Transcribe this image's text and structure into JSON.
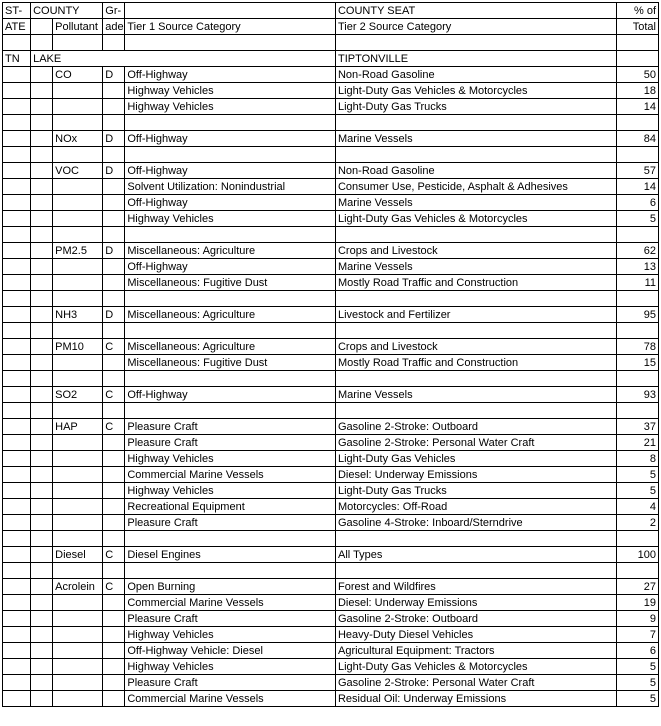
{
  "header": {
    "r1": {
      "state": "ST-",
      "county": "COUNTY",
      "grade": "Gr-",
      "tier1": "",
      "tier2": "COUNTY SEAT",
      "pct": "% of"
    },
    "r2": {
      "state": "ATE",
      "county": "",
      "pollutant": "Pollutant",
      "grade": "ade",
      "tier1": "Tier 1 Source Category",
      "tier2": "Tier 2 Source Category",
      "pct": "Total"
    }
  },
  "county_row": {
    "state": "TN",
    "county": "LAKE",
    "seat": "TIPTONVILLE"
  },
  "rows": [
    {
      "pollutant": "CO",
      "grade": "D",
      "tier1": "Off-Highway",
      "tier2": "Non-Road Gasoline",
      "pct": "50"
    },
    {
      "pollutant": "",
      "grade": "",
      "tier1": "Highway Vehicles",
      "tier2": "Light-Duty Gas Vehicles & Motorcycles",
      "pct": "18"
    },
    {
      "pollutant": "",
      "grade": "",
      "tier1": "Highway Vehicles",
      "tier2": "Light-Duty Gas Trucks",
      "pct": "14"
    },
    {
      "blank": true
    },
    {
      "pollutant": "NOx",
      "grade": "D",
      "tier1": "Off-Highway",
      "tier2": "Marine Vessels",
      "pct": "84"
    },
    {
      "blank": true
    },
    {
      "pollutant": "VOC",
      "grade": "D",
      "tier1": "Off-Highway",
      "tier2": "Non-Road Gasoline",
      "pct": "57"
    },
    {
      "pollutant": "",
      "grade": "",
      "tier1": "Solvent Utilization: Nonindustrial",
      "tier2": "Consumer Use, Pesticide, Asphalt & Adhesives",
      "pct": "14"
    },
    {
      "pollutant": "",
      "grade": "",
      "tier1": "Off-Highway",
      "tier2": "Marine Vessels",
      "pct": "6"
    },
    {
      "pollutant": "",
      "grade": "",
      "tier1": "Highway Vehicles",
      "tier2": "Light-Duty Gas Vehicles & Motorcycles",
      "pct": "5"
    },
    {
      "blank": true
    },
    {
      "pollutant": "PM2.5",
      "grade": "D",
      "tier1": "Miscellaneous: Agriculture",
      "tier2": "Crops and Livestock",
      "pct": "62"
    },
    {
      "pollutant": "",
      "grade": "",
      "tier1": "Off-Highway",
      "tier2": "Marine Vessels",
      "pct": "13"
    },
    {
      "pollutant": "",
      "grade": "",
      "tier1": "Miscellaneous: Fugitive Dust",
      "tier2": "Mostly Road Traffic and Construction",
      "pct": "11"
    },
    {
      "blank": true
    },
    {
      "pollutant": "NH3",
      "grade": "D",
      "tier1": "Miscellaneous: Agriculture",
      "tier2": "Livestock and Fertilizer",
      "pct": "95"
    },
    {
      "blank": true
    },
    {
      "pollutant": "PM10",
      "grade": "C",
      "tier1": "Miscellaneous: Agriculture",
      "tier2": "Crops and Livestock",
      "pct": "78"
    },
    {
      "pollutant": "",
      "grade": "",
      "tier1": "Miscellaneous: Fugitive Dust",
      "tier2": "Mostly Road Traffic and Construction",
      "pct": "15"
    },
    {
      "blank": true
    },
    {
      "pollutant": "SO2",
      "grade": "C",
      "tier1": "Off-Highway",
      "tier2": "Marine Vessels",
      "pct": "93"
    },
    {
      "blank": true
    },
    {
      "pollutant": "HAP",
      "grade": "C",
      "tier1": "Pleasure Craft",
      "tier2": "Gasoline 2-Stroke: Outboard",
      "pct": "37"
    },
    {
      "pollutant": "",
      "grade": "",
      "tier1": "Pleasure Craft",
      "tier2": "Gasoline 2-Stroke: Personal Water Craft",
      "pct": "21"
    },
    {
      "pollutant": "",
      "grade": "",
      "tier1": "Highway Vehicles",
      "tier2": "Light-Duty Gas Vehicles",
      "pct": "8"
    },
    {
      "pollutant": "",
      "grade": "",
      "tier1": "Commercial Marine Vessels",
      "tier2": "Diesel: Underway Emissions",
      "pct": "5"
    },
    {
      "pollutant": "",
      "grade": "",
      "tier1": "Highway Vehicles",
      "tier2": "Light-Duty Gas Trucks",
      "pct": "5"
    },
    {
      "pollutant": "",
      "grade": "",
      "tier1": "Recreational Equipment",
      "tier2": "Motorcycles: Off-Road",
      "pct": "4"
    },
    {
      "pollutant": "",
      "grade": "",
      "tier1": "Pleasure Craft",
      "tier2": "Gasoline 4-Stroke: Inboard/Sterndrive",
      "pct": "2"
    },
    {
      "blank": true
    },
    {
      "pollutant": "Diesel",
      "grade": "C",
      "tier1": "Diesel Engines",
      "tier2": "All Types",
      "pct": "100"
    },
    {
      "blank": true
    },
    {
      "pollutant": "Acrolein",
      "grade": "C",
      "tier1": "Open Burning",
      "tier2": "Forest and Wildfires",
      "pct": "27"
    },
    {
      "pollutant": "",
      "grade": "",
      "tier1": "Commercial Marine Vessels",
      "tier2": "Diesel: Underway Emissions",
      "pct": "19"
    },
    {
      "pollutant": "",
      "grade": "",
      "tier1": "Pleasure Craft",
      "tier2": "Gasoline 2-Stroke: Outboard",
      "pct": "9"
    },
    {
      "pollutant": "",
      "grade": "",
      "tier1": "Highway Vehicles",
      "tier2": "Heavy-Duty Diesel Vehicles",
      "pct": "7"
    },
    {
      "pollutant": "",
      "grade": "",
      "tier1": "Off-Highway Vehicle: Diesel",
      "tier2": "Agricultural Equipment: Tractors",
      "pct": "6"
    },
    {
      "pollutant": "",
      "grade": "",
      "tier1": "Highway Vehicles",
      "tier2": "Light-Duty Gas Vehicles & Motorcycles",
      "pct": "5"
    },
    {
      "pollutant": "",
      "grade": "",
      "tier1": "Pleasure Craft",
      "tier2": "Gasoline 2-Stroke: Personal Water Craft",
      "pct": "5"
    },
    {
      "pollutant": "",
      "grade": "",
      "tier1": "Commercial Marine Vessels",
      "tier2": "Residual Oil: Underway Emissions",
      "pct": "5"
    }
  ]
}
